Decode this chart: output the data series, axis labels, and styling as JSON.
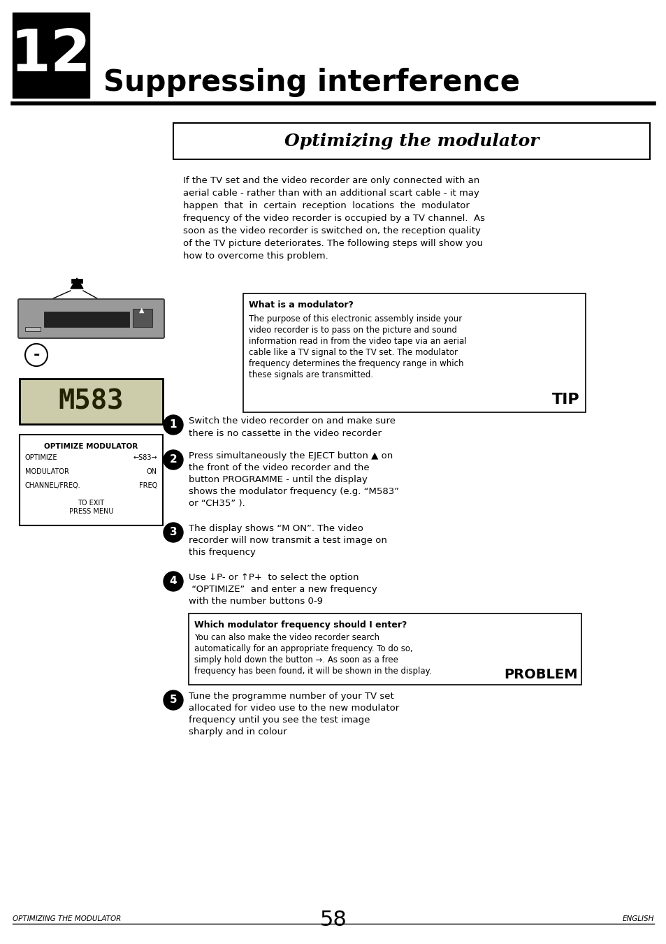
{
  "bg_color": "#ffffff",
  "page_width": 9.54,
  "page_height": 13.51,
  "chapter_num": "12",
  "chapter_title": "Suppressing interference",
  "section_title": "Optimizing the modulator",
  "tip_title": "What is a modulator?",
  "prob_title": "Which modulator frequency should I enter?",
  "prob_text_lines": [
    "You can also make the video recorder search",
    "automatically for an appropriate frequency. To do so,",
    "simply hold down the button →. As soon as a free",
    "frequency has been found, it will be shown in the display."
  ],
  "footer_left": "Optimizing the modulator",
  "footer_center": "58",
  "footer_right": "English",
  "display_text": "M583",
  "menu_line1": "OPTIMIZE MODULATOR",
  "menu_line2": "OPTIMIZE",
  "menu_line3": "MODULATOR",
  "menu_line4": "CHANNEL/FREQ.",
  "menu_val2": "←S83→",
  "menu_val3": "ON",
  "menu_val4": "FREQ",
  "menu_exit": "TO EXIT\nPRESS MENU",
  "intro_lines": [
    "If the TV set and the video recorder are only connected with an",
    "aerial cable - rather than with an additional scart cable - it may",
    "happen  that  in  certain  reception  locations  the  modulator",
    "frequency of the video recorder is occupied by a TV channel.  As",
    "soon as the video recorder is switched on, the reception quality",
    "of the TV picture deteriorates. The following steps will show you",
    "how to overcome this problem."
  ],
  "tip_body_lines": [
    "The purpose of this electronic assembly inside your",
    "video recorder is to pass on the picture and sound",
    "information read in from the video tape via an aerial",
    "cable like a TV signal to the TV set. The modulator",
    "frequency determines the frequency range in which",
    "these signals are transmitted."
  ],
  "s1_lines": [
    "Switch the video recorder on and make sure",
    "there is no cassette in the video recorder"
  ],
  "s2_lines": [
    "Press simultaneously the EJECT button ▲ on",
    "the front of the video recorder and the",
    "button PROGRAMME - until the display",
    "shows the modulator frequency (e.g. “M583”",
    "or “CH35” )."
  ],
  "s3_lines": [
    "The display shows “M ON”. The video",
    "recorder will now transmit a test image on",
    "this frequency"
  ],
  "s4_lines": [
    "Use ↓P- or ↑P+  to select the option",
    " “OPTIMIZE”  and enter a new frequency",
    "with the number buttons 0-9"
  ],
  "s5_lines": [
    "Tune the programme number of your TV set",
    "allocated for video use to the new modulator",
    "frequency until you see the test image",
    "sharply and in colour"
  ]
}
